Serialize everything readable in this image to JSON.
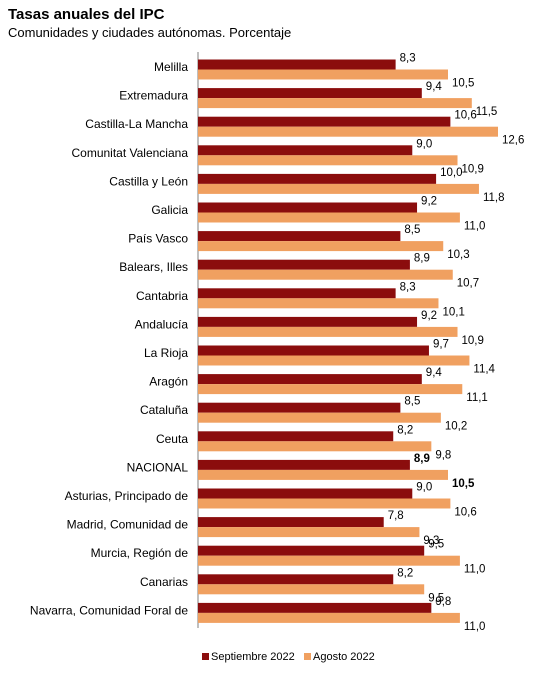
{
  "chart_data": {
    "type": "bar",
    "orientation": "horizontal",
    "title": "Tasas anuales del IPC",
    "subtitle": "Comunidades y ciudades autónomas. Porcentaje",
    "categories": [
      "Melilla",
      "Extremadura",
      "Castilla-La Mancha",
      "Comunitat Valenciana",
      "Castilla y León",
      "Galicia",
      "País Vasco",
      "Balears, Illes",
      "Cantabria",
      "Andalucía",
      "La Rioja",
      "Aragón",
      "Cataluña",
      "Ceuta",
      "NACIONAL",
      "Asturias, Principado de",
      "Madrid, Comunidad de",
      "Murcia, Región de",
      "Canarias",
      "Navarra, Comunidad Foral de"
    ],
    "highlight_category": "NACIONAL",
    "series": [
      {
        "name": "Septiembre 2022",
        "color": "#8B0D0D",
        "values": [
          8.3,
          9.4,
          10.6,
          9.0,
          10.0,
          9.2,
          8.5,
          8.9,
          8.3,
          9.2,
          9.7,
          9.4,
          8.5,
          8.2,
          8.9,
          9.0,
          7.8,
          9.5,
          8.2,
          9.8
        ],
        "labels": [
          "8,3",
          "9,4",
          "10,6",
          "9,0",
          "10,0",
          "9,2",
          "8,5",
          "8,9",
          "8,3",
          "9,2",
          "9,7",
          "9,4",
          "8,5",
          "8,2",
          "8,9",
          "9,0",
          "7,8",
          "9,5",
          "8,2",
          "9,8"
        ]
      },
      {
        "name": "Agosto 2022",
        "color": "#F0A060",
        "values": [
          10.5,
          11.5,
          12.6,
          10.9,
          11.8,
          11.0,
          10.3,
          10.7,
          10.1,
          10.9,
          11.4,
          11.1,
          10.2,
          9.8,
          10.5,
          10.6,
          9.3,
          11.0,
          9.5,
          11.0
        ],
        "labels": [
          "10,5",
          "11,5",
          "12,6",
          "10,9",
          "11,8",
          "11,0",
          "10,3",
          "10,7",
          "10,1",
          "10,9",
          "11,4",
          "11,1",
          "10,2",
          "9,8",
          "10,5",
          "10,6",
          "9,3",
          "11,0",
          "9,5",
          "11,0"
        ]
      }
    ],
    "xlim": [
      0,
      12.6
    ],
    "legend_position": "bottom",
    "grid": false
  }
}
